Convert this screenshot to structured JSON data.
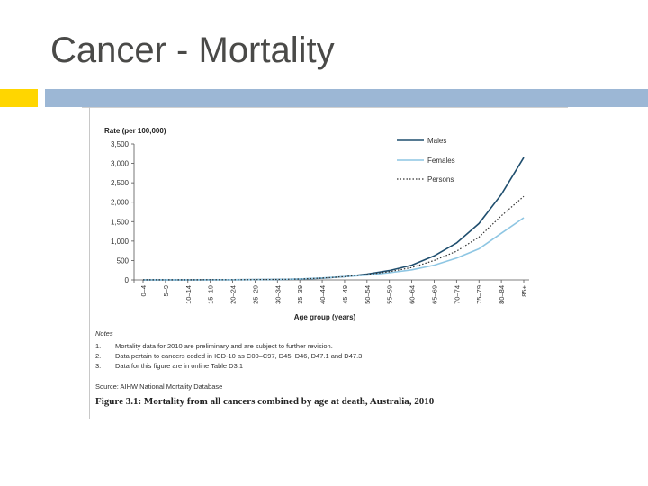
{
  "slide": {
    "title": "Cancer - Mortality"
  },
  "colors": {
    "accent_yellow": "#ffd600",
    "accent_blue": "#9cb7d5",
    "males": "#1f4e6e",
    "females": "#8ec6e3",
    "persons": "#333333"
  },
  "chart_data": {
    "type": "line",
    "ylabel": "Rate (per 100,000)",
    "xlabel": "Age group (years)",
    "ylim": [
      0,
      3500
    ],
    "y_ticks": [
      "0",
      "500",
      "1,000",
      "1,500",
      "2,000",
      "2,500",
      "3,000",
      "3,500"
    ],
    "y_tick_values": [
      0,
      500,
      1000,
      1500,
      2000,
      2500,
      3000,
      3500
    ],
    "categories": [
      "0–4",
      "5–9",
      "10–14",
      "15–19",
      "20–24",
      "25–29",
      "30–34",
      "35–39",
      "40–44",
      "45–49",
      "50–54",
      "55–59",
      "60–64",
      "65–69",
      "70–74",
      "75–79",
      "80–84",
      "85+"
    ],
    "legend_position": "top-right",
    "series": [
      {
        "name": "Males",
        "style": "solid",
        "color": "#1f4e6e",
        "values": [
          3,
          2,
          3,
          4,
          5,
          7,
          12,
          22,
          45,
          85,
          150,
          240,
          380,
          620,
          950,
          1450,
          2200,
          3150
        ]
      },
      {
        "name": "Females",
        "style": "solid",
        "color": "#8ec6e3",
        "values": [
          2,
          2,
          2,
          3,
          4,
          7,
          12,
          25,
          50,
          85,
          125,
          185,
          260,
          380,
          560,
          800,
          1200,
          1600
        ]
      },
      {
        "name": "Persons",
        "style": "dotted",
        "color": "#333333",
        "values": [
          2.5,
          2,
          2.5,
          3.5,
          4.5,
          7,
          12,
          23,
          48,
          85,
          138,
          212,
          320,
          500,
          740,
          1100,
          1650,
          2150
        ]
      }
    ]
  },
  "notes": {
    "title": "Notes",
    "items": [
      {
        "num": "1.",
        "text": "Mortality data for 2010 are preliminary and are subject to further revision."
      },
      {
        "num": "2.",
        "text": "Data pertain to cancers coded in ICD-10 as C00–C97, D45, D46, D47.1 and D47.3"
      },
      {
        "num": "3.",
        "text": "Data for this figure are in online Table D3.1"
      }
    ],
    "source": "Source: AIHW National Mortality Database"
  },
  "caption": "Figure 3.1: Mortality from all cancers combined by age at death, Australia, 2010"
}
